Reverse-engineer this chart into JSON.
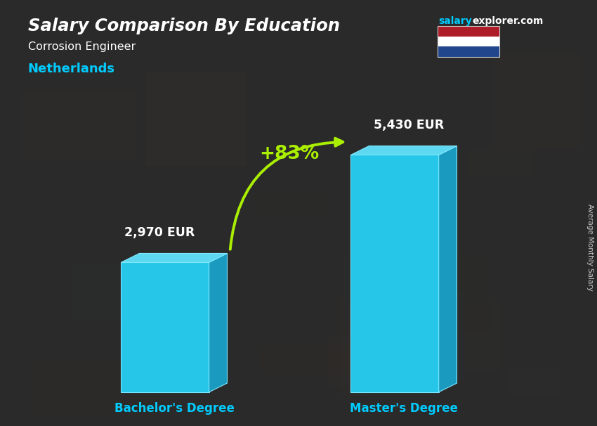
{
  "title": "Salary Comparison By Education",
  "subtitle_job": "Corrosion Engineer",
  "subtitle_country": "Netherlands",
  "categories": [
    "Bachelor's Degree",
    "Master's Degree"
  ],
  "values": [
    2970,
    5430
  ],
  "value_labels": [
    "2,970 EUR",
    "5,430 EUR"
  ],
  "pct_change": "+83%",
  "ylabel_rotated": "Average Monthly Salary",
  "website_salary": "salary",
  "website_rest": "explorer.com",
  "bg_color": "#3a3a3a",
  "title_color": "#ffffff",
  "subtitle_job_color": "#ffffff",
  "subtitle_country_color": "#00ccff",
  "bar_label_color": "#ffffff",
  "xlabel_color": "#00ccff",
  "pct_color": "#aaee00",
  "arrow_color": "#aaee00",
  "bar_front": "#26c6e8",
  "bar_top": "#5dd8f0",
  "bar_side": "#1a9abf",
  "bar_edge": "#80e8ff",
  "fig_width": 8.5,
  "fig_height": 6.06,
  "flag_red": "#AE1C28",
  "flag_white": "#FFFFFF",
  "flag_blue": "#21468B"
}
